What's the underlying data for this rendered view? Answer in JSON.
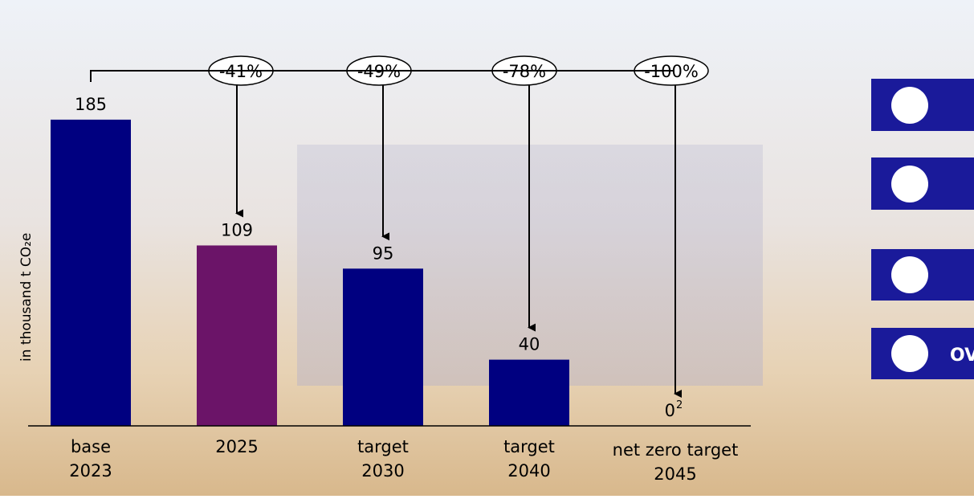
{
  "chart_data": {
    "type": "bar",
    "categories": [
      [
        "base",
        "2023"
      ],
      [
        "2025"
      ],
      [
        "target",
        "2030"
      ],
      [
        "target",
        "2040"
      ],
      [
        "net zero target",
        "2045"
      ]
    ],
    "values": [
      185,
      109,
      95,
      40,
      0
    ],
    "colors": [
      "#000080",
      "#6b1468",
      "#000080",
      "#000080",
      "#000080"
    ],
    "value_label_footnotes": [
      null,
      null,
      null,
      null,
      "2"
    ],
    "ylim": [
      0,
      200
    ],
    "y_label": "in thousand t CO₂e",
    "annotations": [
      "-41%",
      "-49%",
      "-78%",
      "-100%"
    ]
  },
  "side_label": "OV"
}
